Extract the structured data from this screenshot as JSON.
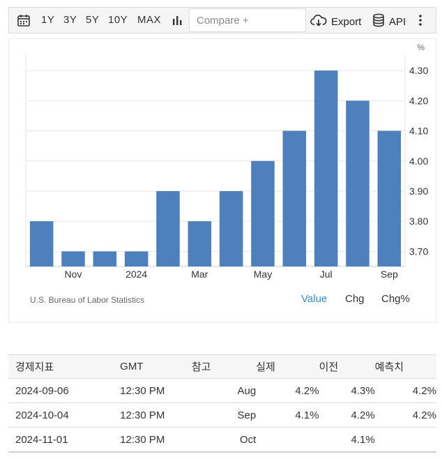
{
  "toolbar": {
    "ranges": [
      "1Y",
      "3Y",
      "5Y",
      "10Y",
      "MAX"
    ],
    "compare_placeholder": "Compare +",
    "export_label": "Export",
    "api_label": "API"
  },
  "chart_data": {
    "type": "bar",
    "unit": "%",
    "categories": [
      "2023-10",
      "2023-11",
      "2023-12",
      "2024-01",
      "2024-02",
      "2024-03",
      "2024-04",
      "2024-05",
      "2024-06",
      "2024-07",
      "2024-08",
      "2024-09"
    ],
    "x_tick_labels": [
      {
        "index": 1,
        "label": "Nov"
      },
      {
        "index": 3,
        "label": "2024"
      },
      {
        "index": 5,
        "label": "Mar"
      },
      {
        "index": 7,
        "label": "May"
      },
      {
        "index": 9,
        "label": "Jul"
      },
      {
        "index": 11,
        "label": "Sep"
      }
    ],
    "values": [
      3.8,
      3.7,
      3.7,
      3.7,
      3.9,
      3.8,
      3.9,
      4.0,
      4.1,
      4.3,
      4.2,
      4.1
    ],
    "y_ticks": [
      "3.70",
      "3.80",
      "3.90",
      "4.00",
      "4.10",
      "4.20",
      "4.30"
    ],
    "ylim": [
      3.65,
      4.335
    ],
    "grid": true,
    "bar_color": "#4d80bd"
  },
  "source": "U.S. Bureau of Labor Statistics",
  "tabs": [
    "Value",
    "Chg",
    "Chg%"
  ],
  "active_tab_color": "#2f8be0",
  "table": {
    "headers": [
      "경제지표",
      "GMT",
      "참고",
      "실제",
      "이전",
      "예측치"
    ],
    "rows": [
      [
        "2024-09-06",
        "12:30 PM",
        "Aug",
        "4.2%",
        "4.3%",
        "4.2%"
      ],
      [
        "2024-10-04",
        "12:30 PM",
        "Sep",
        "4.1%",
        "4.2%",
        "4.2%"
      ],
      [
        "2024-11-01",
        "12:30 PM",
        "Oct",
        "",
        "4.1%",
        ""
      ]
    ]
  }
}
